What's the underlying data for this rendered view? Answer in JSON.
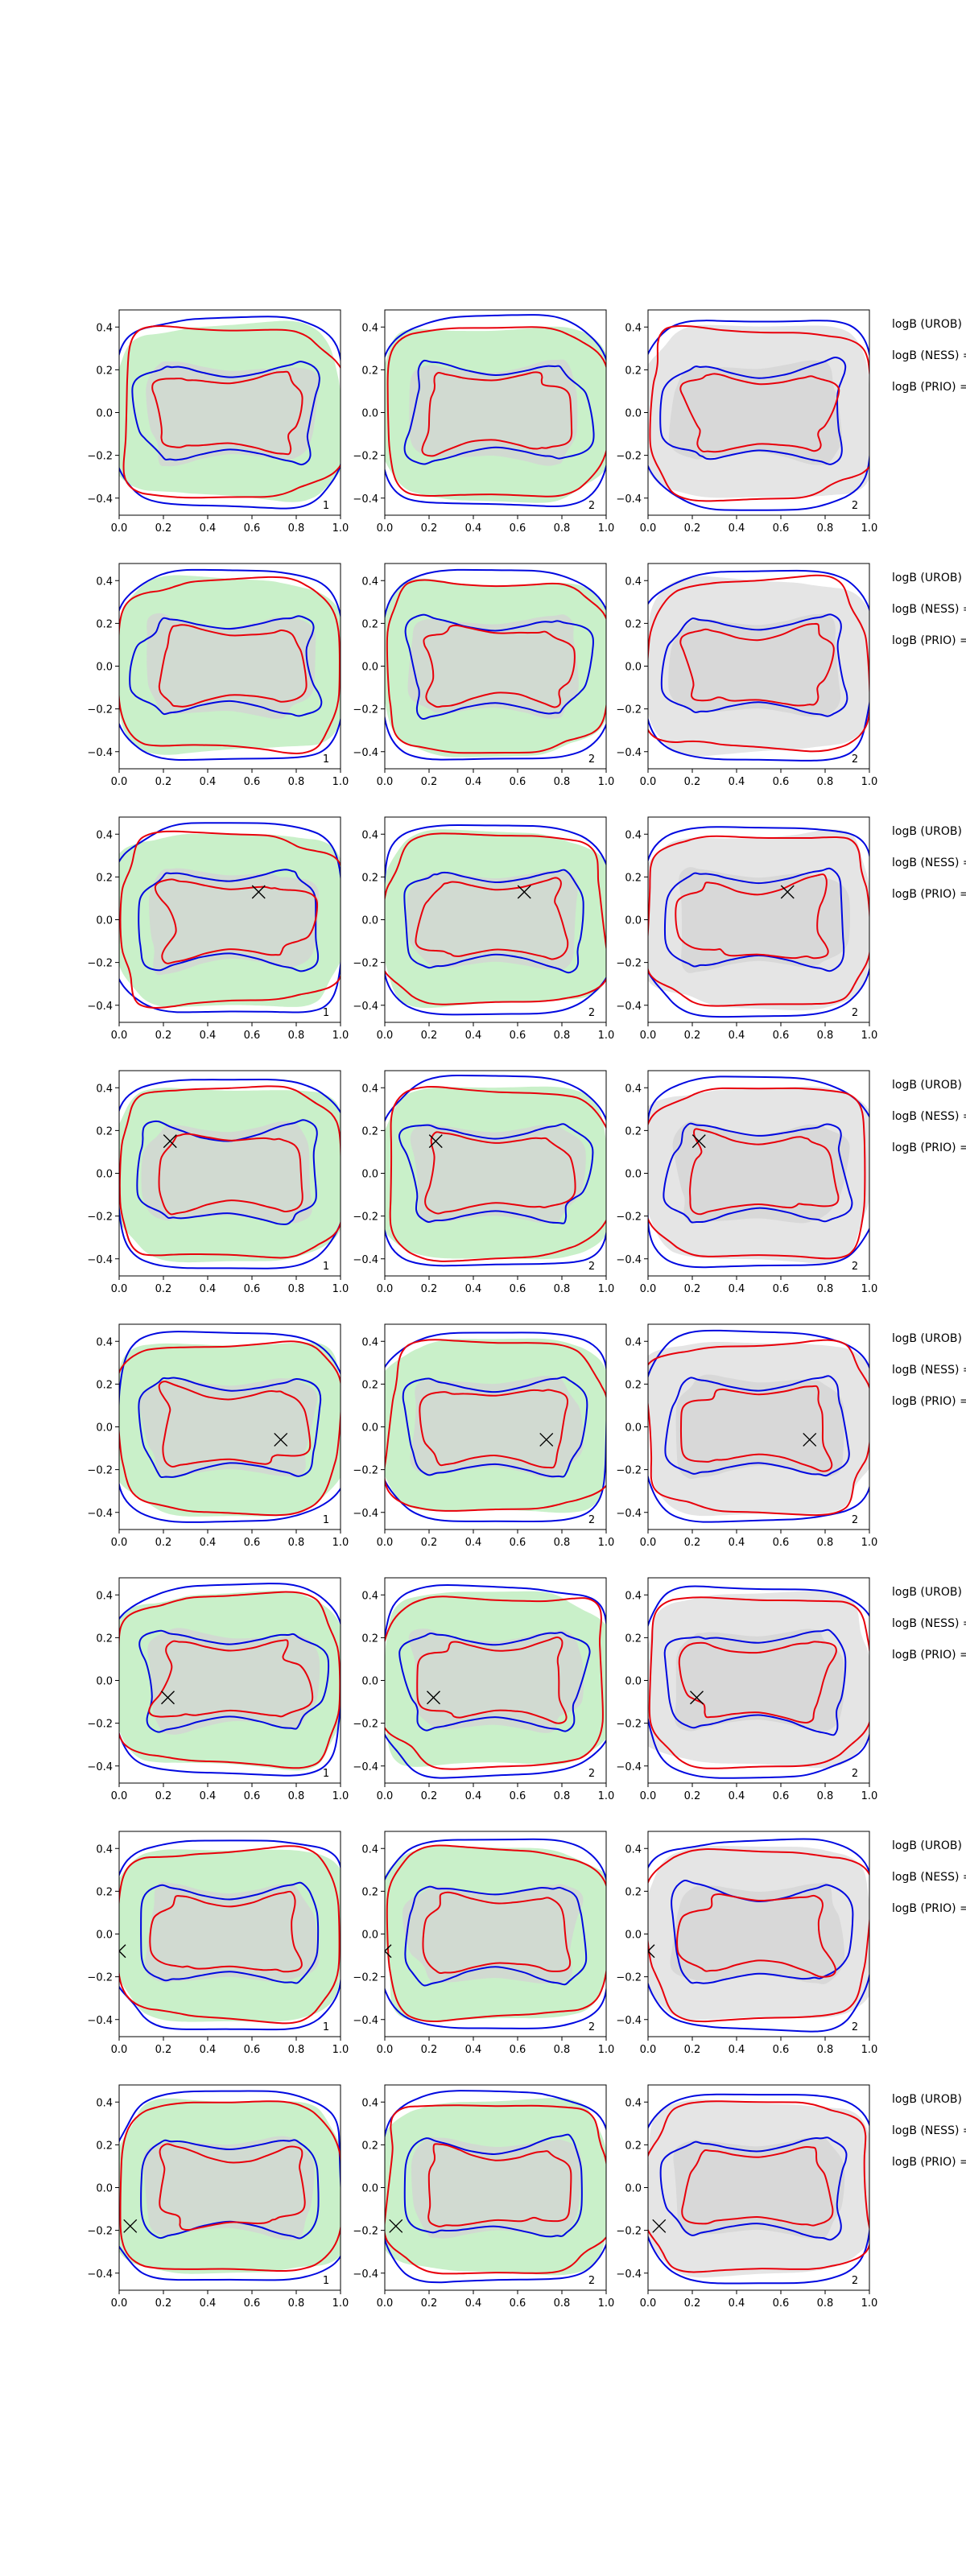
{
  "chart_data": {
    "type": "contour",
    "figure_title": "",
    "grid": {
      "rows": 8,
      "cols": 3
    },
    "xlim": [
      0.0,
      1.0
    ],
    "ylim": [
      -0.48,
      0.48
    ],
    "xticks": [
      0.0,
      0.2,
      0.4,
      0.6,
      0.8,
      1.0
    ],
    "xtick_labels": [
      "0.0",
      "0.2",
      "0.4",
      "0.6",
      "0.8",
      "1.0"
    ],
    "yticks": [
      0.4,
      0.2,
      0.0,
      -0.2,
      -0.4
    ],
    "ytick_labels": [
      "0.4",
      "0.2",
      "0.0",
      "−0.2",
      "−0.4"
    ],
    "column_ids": [
      "1",
      "2",
      "2"
    ],
    "column_fill_colors": [
      "#c9f0c9",
      "#c9f0c9",
      "#e5e5e5"
    ],
    "inner_fill_color": "#d3d3d3",
    "series": [
      {
        "name": "red contours",
        "color": "#e8000b"
      },
      {
        "name": "blue contours",
        "color": "#0008e0"
      }
    ],
    "row_labels": [
      "logB (UROB) =",
      "logB (NESS) =",
      "logB (PRIO) ="
    ],
    "markers": [
      {
        "row": 1,
        "x": null,
        "y": null
      },
      {
        "row": 2,
        "x": null,
        "y": null
      },
      {
        "row": 3,
        "x": 0.63,
        "y": 0.13
      },
      {
        "row": 4,
        "x": 0.23,
        "y": 0.15
      },
      {
        "row": 5,
        "x": 0.73,
        "y": -0.06
      },
      {
        "row": 6,
        "x": 0.22,
        "y": -0.08
      },
      {
        "row": 7,
        "x": 0.0,
        "y": -0.08
      },
      {
        "row": 8,
        "x": 0.05,
        "y": -0.18
      }
    ]
  }
}
